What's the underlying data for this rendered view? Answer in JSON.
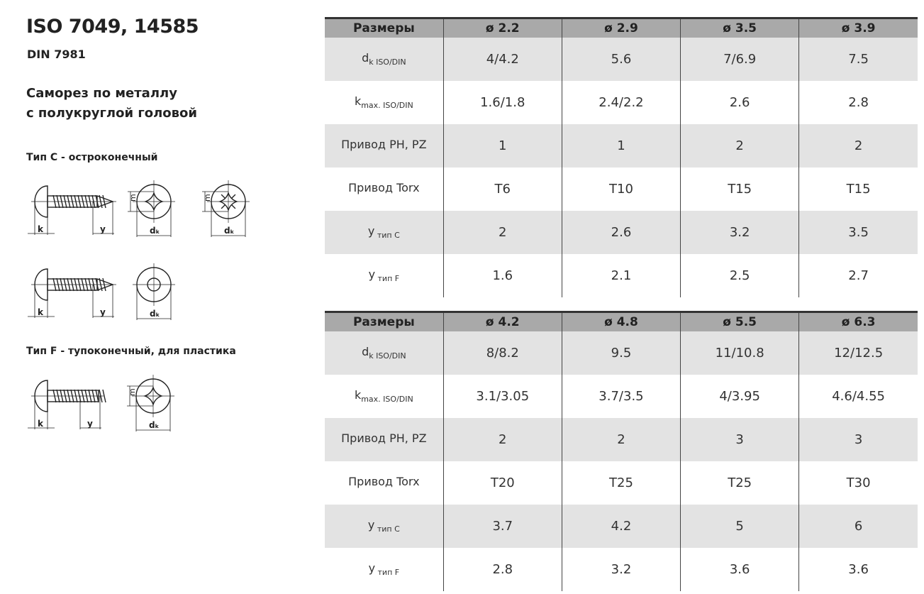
{
  "title": "ISO 7049, 14585",
  "subtitle": "DIN 7981",
  "description": [
    "Саморез по металлу",
    "с полукруглой головой"
  ],
  "type_c": "Тип C - остроконечный",
  "type_f": "Тип F - тупоконечный, для пластика",
  "drawing_labels": {
    "k": "k",
    "y": "y",
    "dk": "dₖ",
    "m": "m"
  },
  "table_header_label": "Размеры",
  "row_labels": [
    {
      "main": "d",
      "sub": "k ISO/DIN"
    },
    {
      "main": "k",
      "sub": "max. ISO/DIN"
    },
    {
      "main": "Привод PH, PZ",
      "sub": ""
    },
    {
      "main": "Привод Torx",
      "sub": ""
    },
    {
      "main": "y",
      "sub": " тип C"
    },
    {
      "main": "y",
      "sub": " тип F"
    }
  ],
  "tables": [
    {
      "columns": [
        "ø 2.2",
        "ø 2.9",
        "ø 3.5",
        "ø 3.9"
      ],
      "rows": [
        [
          "4/4.2",
          "5.6",
          "7/6.9",
          "7.5"
        ],
        [
          "1.6/1.8",
          "2.4/2.2",
          "2.6",
          "2.8"
        ],
        [
          "1",
          "1",
          "2",
          "2"
        ],
        [
          "T6",
          "T10",
          "T15",
          "T15"
        ],
        [
          "2",
          "2.6",
          "3.2",
          "3.5"
        ],
        [
          "1.6",
          "2.1",
          "2.5",
          "2.7"
        ]
      ]
    },
    {
      "columns": [
        "ø 4.2",
        "ø 4.8",
        "ø 5.5",
        "ø 6.3"
      ],
      "rows": [
        [
          "8/8.2",
          "9.5",
          "11/10.8",
          "12/12.5"
        ],
        [
          "3.1/3.05",
          "3.7/3.5",
          "4/3.95",
          "4.6/4.55"
        ],
        [
          "2",
          "2",
          "3",
          "3"
        ],
        [
          "T20",
          "T25",
          "T25",
          "T30"
        ],
        [
          "3.7",
          "4.2",
          "5",
          "6"
        ],
        [
          "2.8",
          "3.2",
          "3.6",
          "3.6"
        ]
      ]
    }
  ]
}
